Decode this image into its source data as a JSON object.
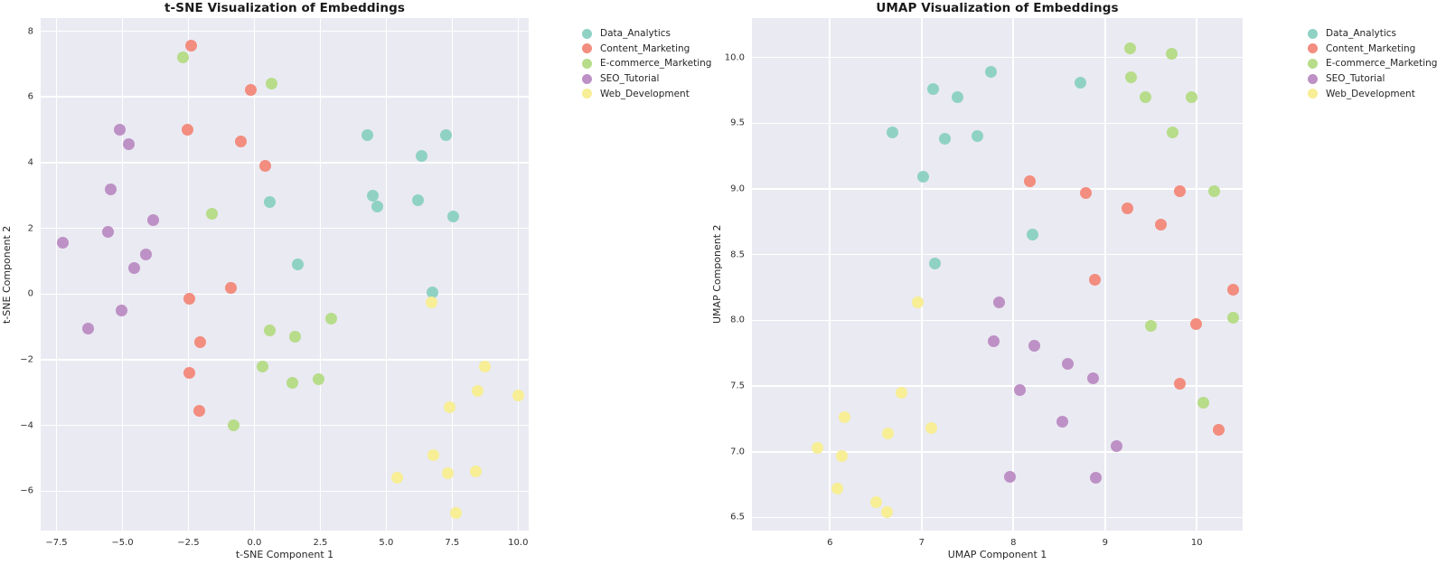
{
  "chart_data": [
    {
      "type": "scatter",
      "title": "t-SNE Visualization of Embeddings",
      "xlabel": "t-SNE Component 1",
      "ylabel": "t-SNE Component 2",
      "xlim": [
        -8.1,
        10.4
      ],
      "ylim": [
        -7.2,
        8.4
      ],
      "grid": true,
      "legend_position": "right-outside",
      "plot_bg": "#eaeaf2",
      "grid_color": "#ffffff",
      "xticks": {
        "values": [
          -7.5,
          -5.0,
          -2.5,
          0.0,
          2.5,
          5.0,
          7.5,
          10.0
        ],
        "labels": [
          "−7.5",
          "−5.0",
          "−2.5",
          "0.0",
          "2.5",
          "5.0",
          "7.5",
          "10.0"
        ]
      },
      "yticks": {
        "values": [
          8,
          6,
          4,
          2,
          0,
          -2,
          -4,
          -6
        ],
        "labels": [
          "8",
          "6",
          "4",
          "2",
          "0",
          "−2",
          "−4",
          "−6"
        ]
      },
      "series": [
        {
          "name": "Data_Analytics",
          "color": "#8fd2c4",
          "points": [
            [
              4.3,
              4.85
            ],
            [
              7.25,
              4.85
            ],
            [
              6.35,
              4.2
            ],
            [
              4.5,
              3.0
            ],
            [
              4.65,
              2.65
            ],
            [
              6.2,
              2.85
            ],
            [
              7.55,
              2.35
            ],
            [
              0.6,
              2.8
            ],
            [
              1.65,
              0.9
            ],
            [
              6.75,
              0.05
            ]
          ]
        },
        {
          "name": "Content_Marketing",
          "color": "#f28d7f",
          "points": [
            [
              -2.4,
              7.55
            ],
            [
              -0.15,
              6.2
            ],
            [
              -2.55,
              5.0
            ],
            [
              -0.5,
              4.65
            ],
            [
              0.4,
              3.9
            ],
            [
              -0.9,
              0.2
            ],
            [
              -2.45,
              -0.15
            ],
            [
              -2.05,
              -1.45
            ],
            [
              -2.45,
              -2.4
            ],
            [
              -2.1,
              -3.55
            ]
          ]
        },
        {
          "name": "E-commerce_Marketing",
          "color": "#b7dc8a",
          "points": [
            [
              -2.7,
              7.2
            ],
            [
              0.65,
              6.4
            ],
            [
              -1.6,
              2.45
            ],
            [
              2.9,
              -0.75
            ],
            [
              0.6,
              -1.1
            ],
            [
              1.55,
              -1.3
            ],
            [
              0.3,
              -2.2
            ],
            [
              1.45,
              -2.7
            ],
            [
              2.45,
              -2.6
            ],
            [
              -0.8,
              -4.0
            ]
          ]
        },
        {
          "name": "SEO_Tutorial",
          "color": "#bd91c5",
          "points": [
            [
              -5.1,
              5.0
            ],
            [
              -4.75,
              4.55
            ],
            [
              -5.45,
              3.2
            ],
            [
              -3.85,
              2.25
            ],
            [
              -5.55,
              1.9
            ],
            [
              -7.25,
              1.55
            ],
            [
              -4.1,
              1.2
            ],
            [
              -4.55,
              0.8
            ],
            [
              -5.05,
              -0.5
            ],
            [
              -6.3,
              -1.05
            ]
          ]
        },
        {
          "name": "Web_Development",
          "color": "#f7ee95",
          "points": [
            [
              6.7,
              -0.25
            ],
            [
              8.75,
              -2.2
            ],
            [
              8.45,
              -2.95
            ],
            [
              10.0,
              -3.1
            ],
            [
              7.4,
              -3.45
            ],
            [
              6.8,
              -4.9
            ],
            [
              5.4,
              -5.6
            ],
            [
              7.35,
              -5.45
            ],
            [
              8.4,
              -5.4
            ],
            [
              7.65,
              -6.65
            ]
          ]
        }
      ]
    },
    {
      "type": "scatter",
      "title": "UMAP Visualization of Embeddings",
      "xlabel": "UMAP Component 1",
      "ylabel": "UMAP Component 2",
      "xlim": [
        5.15,
        10.5
      ],
      "ylim": [
        6.4,
        10.3
      ],
      "grid": true,
      "legend_position": "right-outside",
      "plot_bg": "#eaeaf2",
      "grid_color": "#ffffff",
      "xticks": {
        "values": [
          6,
          7,
          8,
          9,
          10
        ],
        "labels": [
          "6",
          "7",
          "8",
          "9",
          "10"
        ]
      },
      "yticks": {
        "values": [
          10.0,
          9.5,
          9.0,
          8.5,
          8.0,
          7.5,
          7.0,
          6.5
        ],
        "labels": [
          "10.0",
          "9.5",
          "9.0",
          "8.5",
          "8.0",
          "7.5",
          "7.0",
          "6.5"
        ]
      },
      "series": [
        {
          "name": "Data_Analytics",
          "color": "#8fd2c4",
          "points": [
            [
              7.76,
              9.89
            ],
            [
              8.73,
              9.81
            ],
            [
              7.13,
              9.76
            ],
            [
              7.39,
              9.7
            ],
            [
              6.68,
              9.43
            ],
            [
              7.61,
              9.4
            ],
            [
              7.25,
              9.38
            ],
            [
              7.02,
              9.09
            ],
            [
              8.21,
              8.65
            ],
            [
              7.15,
              8.43
            ]
          ]
        },
        {
          "name": "Content_Marketing",
          "color": "#f28d7f",
          "points": [
            [
              8.18,
              9.06
            ],
            [
              9.82,
              8.98
            ],
            [
              8.79,
              8.97
            ],
            [
              9.24,
              8.85
            ],
            [
              9.61,
              8.73
            ],
            [
              8.89,
              8.31
            ],
            [
              10.4,
              8.23
            ],
            [
              9.99,
              7.97
            ],
            [
              9.82,
              7.52
            ],
            [
              10.24,
              7.17
            ]
          ]
        },
        {
          "name": "E-commerce_Marketing",
          "color": "#b7dc8a",
          "points": [
            [
              9.27,
              10.07
            ],
            [
              9.73,
              10.03
            ],
            [
              9.28,
              9.85
            ],
            [
              9.44,
              9.7
            ],
            [
              9.94,
              9.7
            ],
            [
              9.74,
              9.43
            ],
            [
              10.19,
              8.98
            ],
            [
              10.4,
              8.02
            ],
            [
              9.5,
              7.96
            ],
            [
              10.07,
              7.37
            ]
          ]
        },
        {
          "name": "SEO_Tutorial",
          "color": "#bd91c5",
          "points": [
            [
              7.84,
              8.14
            ],
            [
              7.79,
              7.84
            ],
            [
              8.23,
              7.81
            ],
            [
              8.59,
              7.67
            ],
            [
              8.87,
              7.56
            ],
            [
              8.07,
              7.47
            ],
            [
              8.53,
              7.23
            ],
            [
              9.13,
              7.04
            ],
            [
              7.96,
              6.81
            ],
            [
              8.9,
              6.8
            ]
          ]
        },
        {
          "name": "Web_Development",
          "color": "#f7ee95",
          "points": [
            [
              6.96,
              8.14
            ],
            [
              6.78,
              7.45
            ],
            [
              6.16,
              7.26
            ],
            [
              7.11,
              7.18
            ],
            [
              6.63,
              7.14
            ],
            [
              5.86,
              7.03
            ],
            [
              6.13,
              6.97
            ],
            [
              6.08,
              6.72
            ],
            [
              6.5,
              6.62
            ],
            [
              6.62,
              6.54
            ]
          ]
        }
      ]
    }
  ],
  "legend_entries": [
    "Data_Analytics",
    "Content_Marketing",
    "E-commerce_Marketing",
    "SEO_Tutorial",
    "Web_Development"
  ],
  "style": {
    "dot_diameter": 13,
    "legend_dot": 11
  }
}
